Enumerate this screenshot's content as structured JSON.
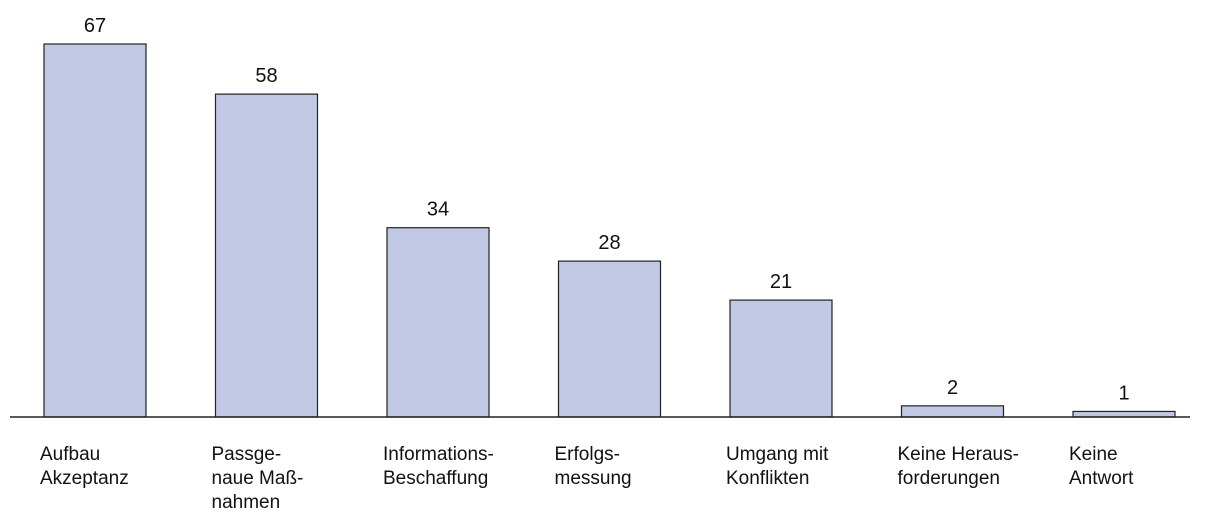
{
  "chart_data": {
    "type": "bar",
    "categories": [
      "Aufbau\nAkzeptanz",
      "Passge-\nnaue Maß-\nnahmen",
      "Informations-\nBeschaffung",
      "Erfolgs-\nmessung",
      "Umgang mit\nKonflikten",
      "Keine Heraus-\nforderungen",
      "Keine\nAntwort"
    ],
    "values": [
      67,
      58,
      34,
      28,
      21,
      2,
      1
    ],
    "color": "#c0c8e4"
  }
}
